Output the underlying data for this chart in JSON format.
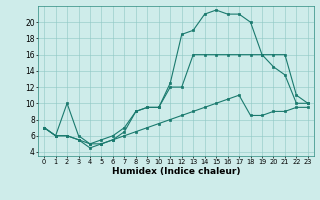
{
  "xlabel": "Humidex (Indice chaleur)",
  "xlim": [
    -0.5,
    23.5
  ],
  "ylim": [
    3.5,
    22
  ],
  "yticks": [
    4,
    6,
    8,
    10,
    12,
    14,
    16,
    18,
    20
  ],
  "xticks": [
    0,
    1,
    2,
    3,
    4,
    5,
    6,
    7,
    8,
    9,
    10,
    11,
    12,
    13,
    14,
    15,
    16,
    17,
    18,
    19,
    20,
    21,
    22,
    23
  ],
  "bg_color": "#ceecea",
  "line_color": "#1a7a6e",
  "line1_x": [
    0,
    1,
    2,
    3,
    4,
    5,
    6,
    7,
    8,
    9,
    10,
    11,
    12,
    13,
    14,
    15,
    16,
    17,
    18,
    19,
    20,
    21,
    22,
    23
  ],
  "line1_y": [
    7,
    6,
    10,
    6,
    5,
    5.5,
    6,
    7,
    9,
    9.5,
    9.5,
    12.5,
    18.5,
    19,
    21,
    21.5,
    21,
    21,
    20,
    16,
    14.5,
    13.5,
    10,
    10
  ],
  "line2_x": [
    0,
    1,
    2,
    3,
    4,
    5,
    6,
    7,
    8,
    9,
    10,
    11,
    12,
    13,
    14,
    15,
    16,
    17,
    18,
    19,
    20,
    21,
    22,
    23
  ],
  "line2_y": [
    7,
    6,
    6,
    5.5,
    4.5,
    5,
    5.5,
    6.5,
    9,
    9.5,
    9.5,
    12,
    12,
    16,
    16,
    16,
    16,
    16,
    16,
    16,
    16,
    16,
    11,
    10
  ],
  "line3_x": [
    0,
    1,
    2,
    3,
    4,
    5,
    6,
    7,
    8,
    9,
    10,
    11,
    12,
    13,
    14,
    15,
    16,
    17,
    18,
    19,
    20,
    21,
    22,
    23
  ],
  "line3_y": [
    7,
    6,
    6,
    5.5,
    5,
    5,
    5.5,
    6,
    6.5,
    7,
    7.5,
    8,
    8.5,
    9,
    9.5,
    10,
    10.5,
    11,
    8.5,
    8.5,
    9,
    9,
    9.5,
    9.5
  ]
}
